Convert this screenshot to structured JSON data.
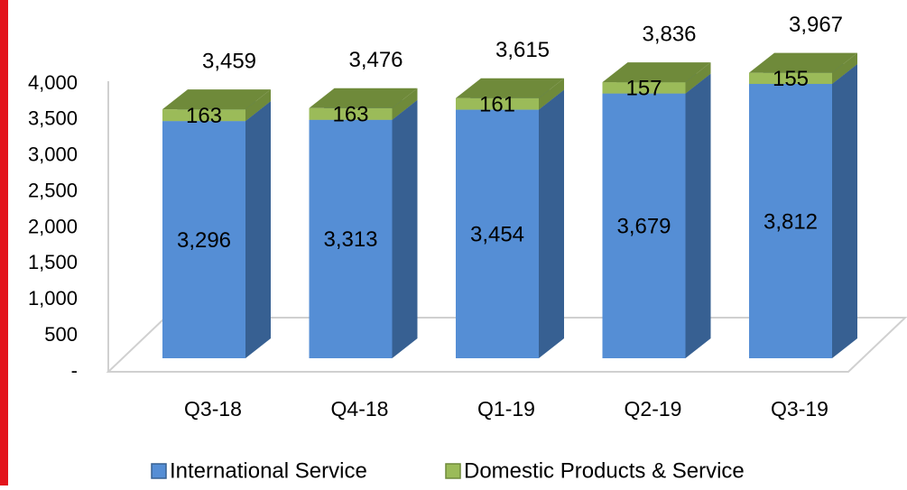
{
  "chart_data": {
    "type": "bar3d_stacked",
    "categories": [
      "Q3-18",
      "Q4-18",
      "Q1-19",
      "Q2-19",
      "Q3-19"
    ],
    "series": [
      {
        "name": "International Service",
        "color": "#558ed5",
        "side_color": "#376092",
        "values": [
          3296,
          3313,
          3454,
          3679,
          3812
        ],
        "value_labels": [
          "3,296",
          "3,313",
          "3,454",
          "3,679",
          "3,812"
        ]
      },
      {
        "name": "Domestic Products & Service",
        "color": "#9bbb59",
        "side_color": "#6f8a3a",
        "values": [
          163,
          163,
          161,
          157,
          155
        ]
      }
    ],
    "totals": [
      3459,
      3476,
      3615,
      3836,
      3967
    ],
    "total_labels": [
      "3,459",
      "3,476",
      "3,615",
      "3,836",
      "3,967"
    ],
    "ylim": [
      0,
      4000
    ],
    "yticks": [
      {
        "value": 0,
        "label": "-"
      },
      500,
      {
        "value": 1000,
        "label": "1,000"
      },
      {
        "value": 1500,
        "label": "1,500"
      },
      {
        "value": 2000,
        "label": "2,000"
      },
      {
        "value": 2500,
        "label": "2,500"
      },
      {
        "value": 3000,
        "label": "3,000"
      },
      {
        "value": 3500,
        "label": "3,500"
      },
      {
        "value": 4000,
        "label": "4,000"
      }
    ],
    "legend": "bottom"
  }
}
